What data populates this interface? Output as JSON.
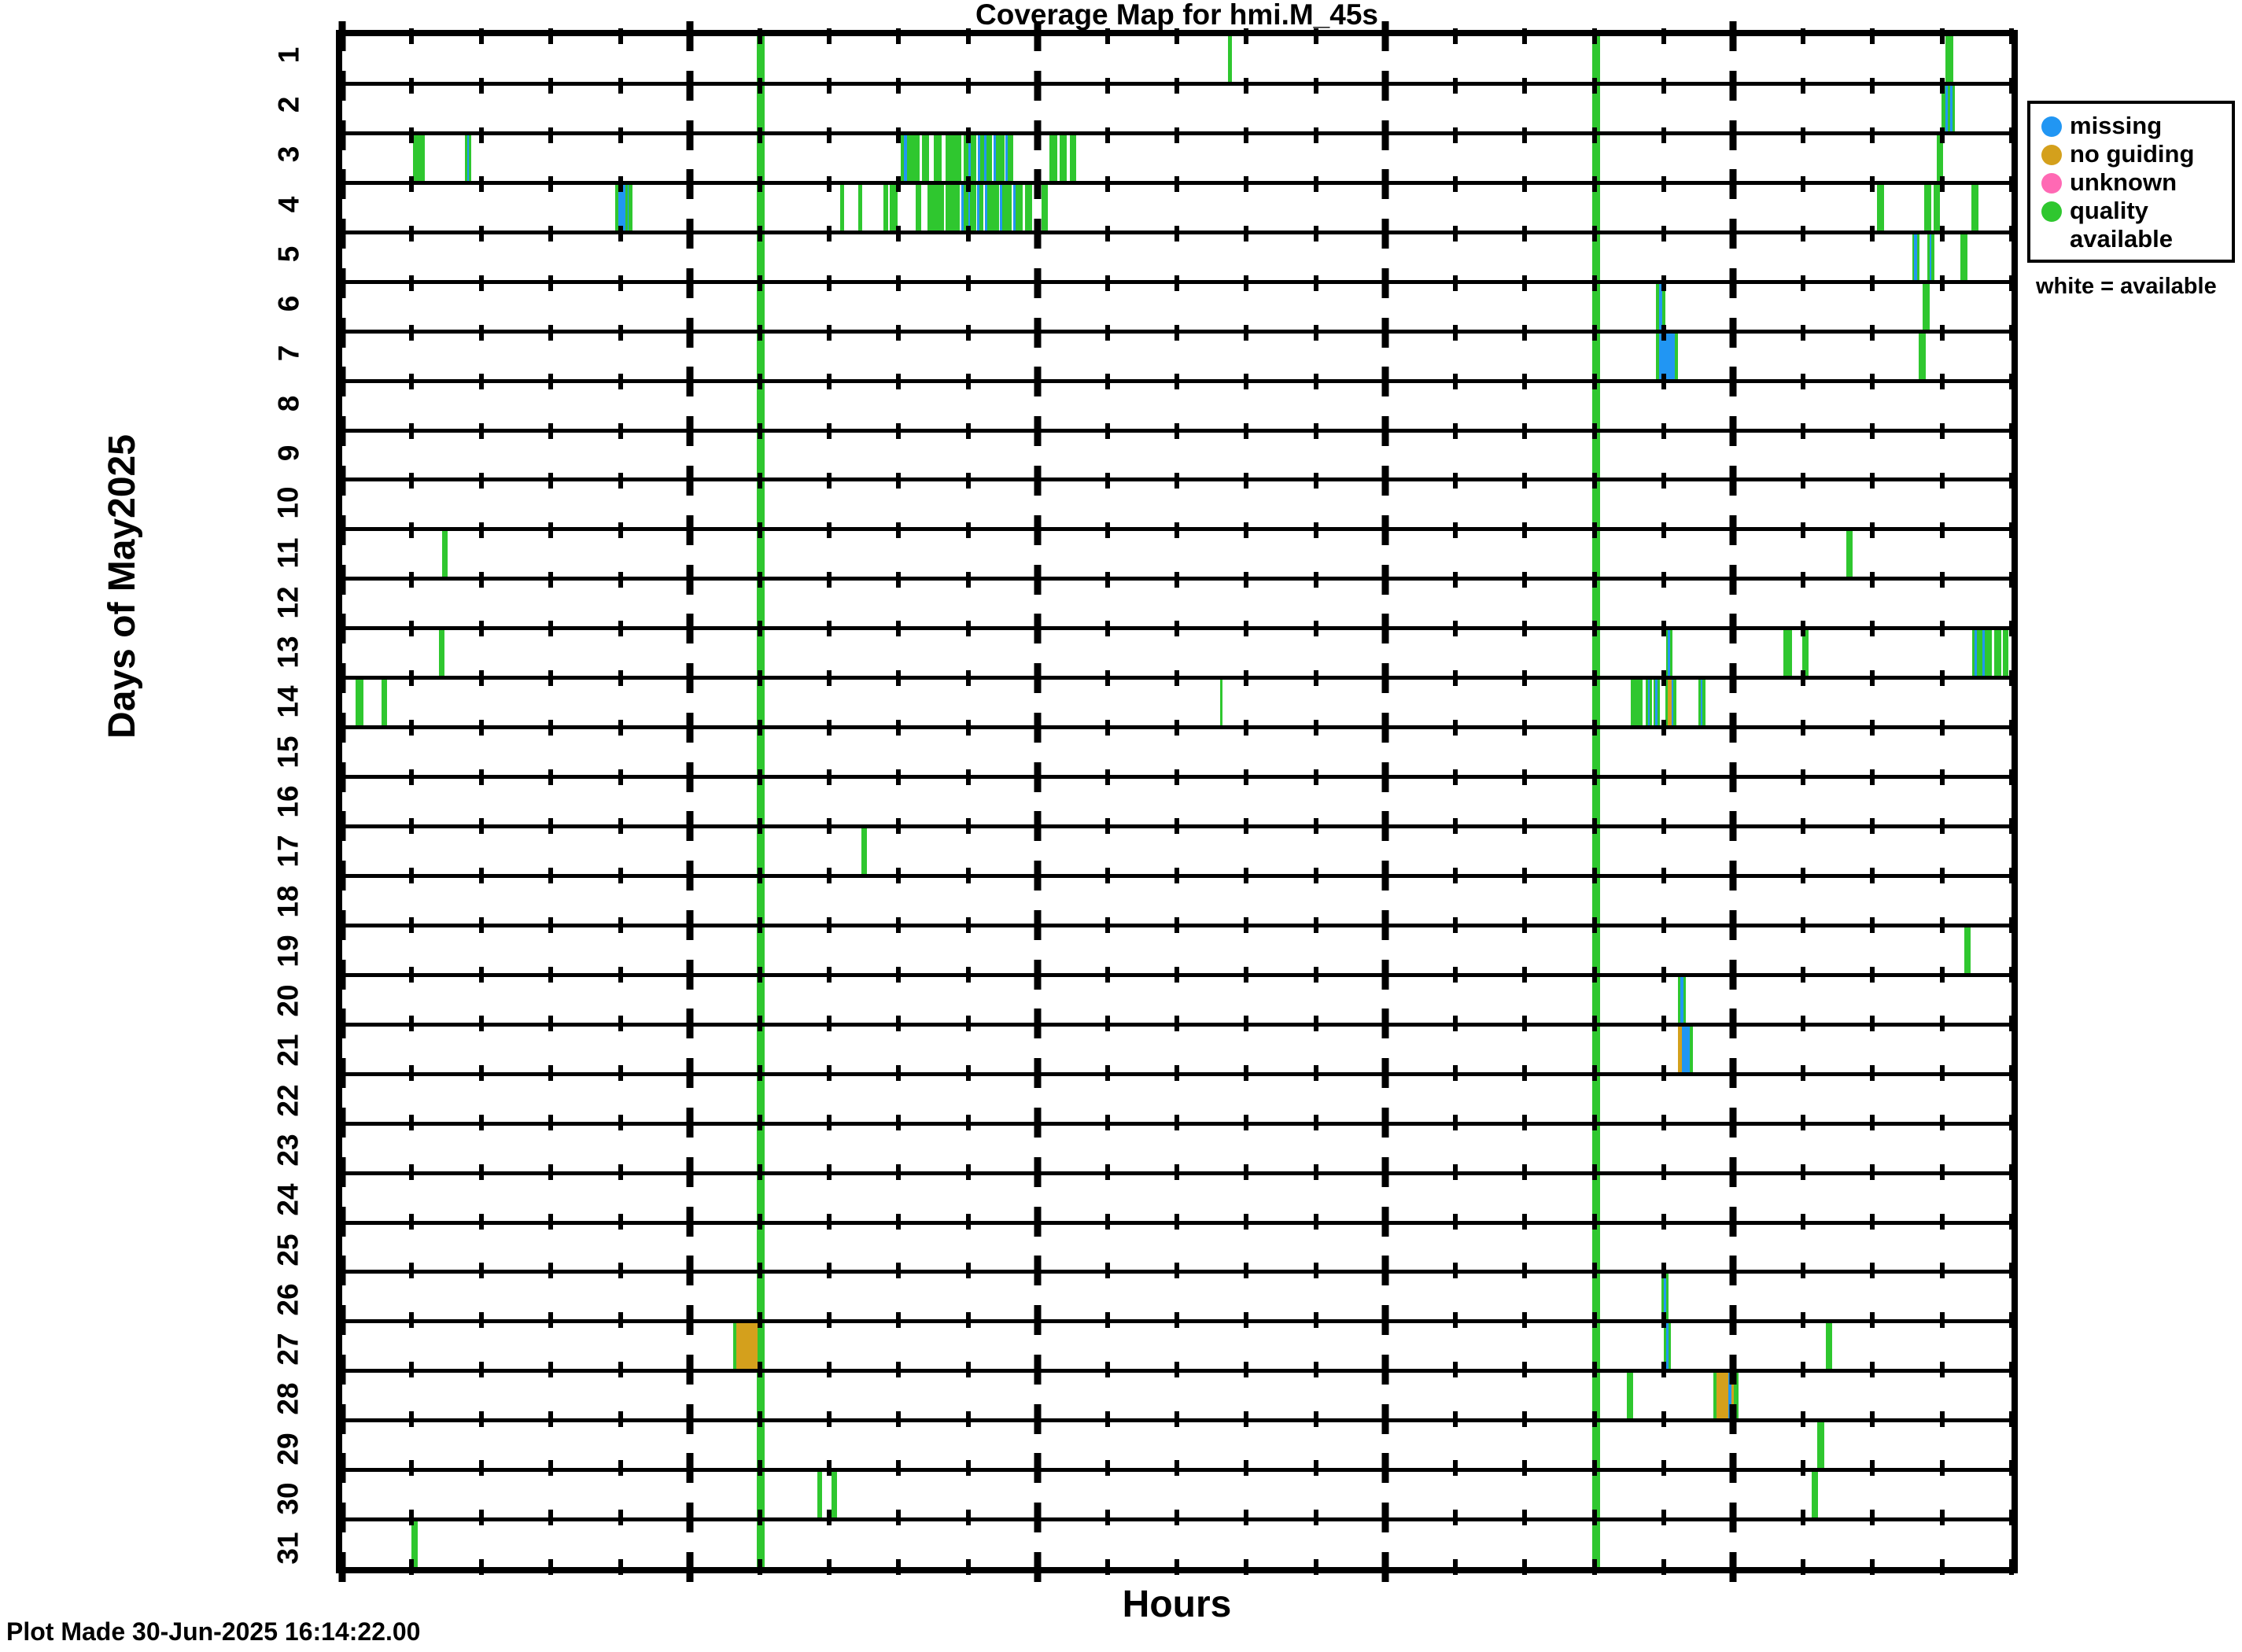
{
  "title": "Coverage Map for hmi.M_45s",
  "x_axis_label": "Hours",
  "y_axis_label": "Days of May2025",
  "footer": "Plot Made 30-Jun-2025 16:14:22.00",
  "legend": {
    "items": [
      {
        "label": "missing",
        "color": "#2196f3"
      },
      {
        "label": "no guiding",
        "color": "#d4a01c"
      },
      {
        "label": "unknown",
        "color": "#ff69b4"
      },
      {
        "label": "quality available",
        "color": "#2fc72f"
      }
    ],
    "note": "white = available"
  },
  "chart_data": {
    "type": "heatmap",
    "subtype": "coverage-map",
    "title": "Coverage Map for hmi.M_45s",
    "xlabel": "Hours",
    "ylabel": "Days of May2025",
    "x_range_hours": [
      0,
      24
    ],
    "minor_tick_hours": 1,
    "major_tick_hours": 5,
    "background_meaning": "white = available",
    "colors": {
      "g": "#2fc72f",
      "b": "#2196f3",
      "o": "#d4a01c",
      "p": "#ff69b4"
    },
    "color_meaning": {
      "g": "quality available",
      "b": "missing",
      "o": "no guiding",
      "p": "unknown"
    },
    "daily_marks": [
      [
        5.96,
        6.07,
        "g"
      ],
      [
        17.97,
        18.09,
        "g"
      ]
    ],
    "rows": [
      {
        "day": 1,
        "marks": [
          [
            12.74,
            12.79,
            "g"
          ],
          [
            23.05,
            23.16,
            "g"
          ]
        ]
      },
      {
        "day": 2,
        "marks": [
          [
            22.99,
            23.05,
            "g"
          ],
          [
            23.05,
            23.08,
            "b"
          ],
          [
            23.08,
            23.12,
            "g"
          ],
          [
            23.12,
            23.15,
            "b"
          ],
          [
            23.15,
            23.19,
            "g"
          ]
        ]
      },
      {
        "day": 3,
        "marks": [
          [
            1.02,
            1.19,
            "g"
          ],
          [
            1.77,
            1.8,
            "g"
          ],
          [
            1.8,
            1.82,
            "b"
          ],
          [
            1.82,
            1.86,
            "g"
          ],
          [
            8.03,
            8.08,
            "g"
          ],
          [
            8.08,
            8.12,
            "b"
          ],
          [
            8.12,
            8.3,
            "g"
          ],
          [
            8.34,
            8.44,
            "g"
          ],
          [
            8.5,
            8.62,
            "g"
          ],
          [
            8.68,
            8.9,
            "g"
          ],
          [
            8.94,
            9.0,
            "g"
          ],
          [
            9.0,
            9.04,
            "b"
          ],
          [
            9.04,
            9.12,
            "g"
          ],
          [
            9.14,
            9.17,
            "b"
          ],
          [
            9.17,
            9.23,
            "g"
          ],
          [
            9.23,
            9.26,
            "b"
          ],
          [
            9.26,
            9.34,
            "g"
          ],
          [
            9.36,
            9.4,
            "b"
          ],
          [
            9.4,
            9.52,
            "g"
          ],
          [
            9.54,
            9.57,
            "b"
          ],
          [
            9.57,
            9.65,
            "g"
          ],
          [
            10.17,
            10.28,
            "g"
          ],
          [
            10.32,
            10.42,
            "g"
          ],
          [
            10.46,
            10.55,
            "g"
          ],
          [
            22.92,
            23.02,
            "g"
          ]
        ]
      },
      {
        "day": 4,
        "marks": [
          [
            3.93,
            3.97,
            "g"
          ],
          [
            3.97,
            4.07,
            "b"
          ],
          [
            4.07,
            4.1,
            "g"
          ],
          [
            4.1,
            4.12,
            "b"
          ],
          [
            4.12,
            4.17,
            "g"
          ],
          [
            7.16,
            7.22,
            "g"
          ],
          [
            7.42,
            7.48,
            "g"
          ],
          [
            7.78,
            7.85,
            "g"
          ],
          [
            7.87,
            7.98,
            "g"
          ],
          [
            8.25,
            8.32,
            "g"
          ],
          [
            8.42,
            8.65,
            "g"
          ],
          [
            8.68,
            8.88,
            "g"
          ],
          [
            8.9,
            8.93,
            "b"
          ],
          [
            8.93,
            9.0,
            "g"
          ],
          [
            9.0,
            9.03,
            "b"
          ],
          [
            9.03,
            9.12,
            "g"
          ],
          [
            9.13,
            9.16,
            "b"
          ],
          [
            9.16,
            9.22,
            "g"
          ],
          [
            9.24,
            9.27,
            "b"
          ],
          [
            9.27,
            9.44,
            "g"
          ],
          [
            9.46,
            9.49,
            "b"
          ],
          [
            9.49,
            9.62,
            "g"
          ],
          [
            9.65,
            9.68,
            "b"
          ],
          [
            9.68,
            9.78,
            "g"
          ],
          [
            9.82,
            9.92,
            "g"
          ],
          [
            10.06,
            10.14,
            "g"
          ],
          [
            22.07,
            22.17,
            "g"
          ],
          [
            22.74,
            22.85,
            "g"
          ],
          [
            22.88,
            22.97,
            "g"
          ],
          [
            23.42,
            23.52,
            "g"
          ]
        ]
      },
      {
        "day": 5,
        "marks": [
          [
            22.57,
            22.6,
            "g"
          ],
          [
            22.6,
            22.64,
            "b"
          ],
          [
            22.64,
            22.68,
            "g"
          ],
          [
            22.79,
            22.82,
            "g"
          ],
          [
            22.82,
            22.85,
            "b"
          ],
          [
            22.85,
            22.89,
            "g"
          ],
          [
            23.27,
            23.37,
            "g"
          ]
        ]
      },
      {
        "day": 6,
        "marks": [
          [
            18.89,
            18.93,
            "g"
          ],
          [
            18.93,
            18.98,
            "b"
          ],
          [
            18.98,
            19.02,
            "g"
          ],
          [
            22.72,
            22.82,
            "g"
          ]
        ]
      },
      {
        "day": 7,
        "marks": [
          [
            18.89,
            18.93,
            "g"
          ],
          [
            18.93,
            19.16,
            "b"
          ],
          [
            19.16,
            19.21,
            "g"
          ],
          [
            22.66,
            22.77,
            "g"
          ]
        ]
      },
      {
        "day": 8,
        "marks": []
      },
      {
        "day": 9,
        "marks": []
      },
      {
        "day": 10,
        "marks": []
      },
      {
        "day": 11,
        "marks": [
          [
            1.44,
            1.52,
            "g"
          ],
          [
            21.62,
            21.71,
            "g"
          ]
        ]
      },
      {
        "day": 12,
        "marks": []
      },
      {
        "day": 13,
        "marks": [
          [
            1.39,
            1.47,
            "g"
          ],
          [
            19.03,
            19.06,
            "g"
          ],
          [
            19.06,
            19.09,
            "b"
          ],
          [
            19.09,
            19.12,
            "g"
          ],
          [
            20.72,
            20.84,
            "g"
          ],
          [
            20.99,
            21.08,
            "g"
          ],
          [
            23.44,
            23.47,
            "g"
          ],
          [
            23.47,
            23.5,
            "b"
          ],
          [
            23.5,
            23.58,
            "g"
          ],
          [
            23.58,
            23.61,
            "b"
          ],
          [
            23.61,
            23.72,
            "g"
          ],
          [
            23.75,
            23.85,
            "g"
          ],
          [
            23.87,
            23.95,
            "g"
          ]
        ]
      },
      {
        "day": 14,
        "marks": [
          [
            0.19,
            0.31,
            "g"
          ],
          [
            0.56,
            0.65,
            "g"
          ],
          [
            12.62,
            12.65,
            "g"
          ],
          [
            18.53,
            18.69,
            "g"
          ],
          [
            18.74,
            18.77,
            "g"
          ],
          [
            18.77,
            18.8,
            "b"
          ],
          [
            18.8,
            18.83,
            "g"
          ],
          [
            18.85,
            18.88,
            "g"
          ],
          [
            18.88,
            18.91,
            "b"
          ],
          [
            18.91,
            18.94,
            "g"
          ],
          [
            19.02,
            19.06,
            "g"
          ],
          [
            19.06,
            19.11,
            "o"
          ],
          [
            19.11,
            19.14,
            "b"
          ],
          [
            19.14,
            19.18,
            "g"
          ],
          [
            19.5,
            19.53,
            "g"
          ],
          [
            19.53,
            19.56,
            "b"
          ],
          [
            19.56,
            19.6,
            "g"
          ]
        ]
      },
      {
        "day": 15,
        "marks": []
      },
      {
        "day": 16,
        "marks": []
      },
      {
        "day": 17,
        "marks": [
          [
            7.46,
            7.54,
            "g"
          ]
        ]
      },
      {
        "day": 18,
        "marks": []
      },
      {
        "day": 19,
        "marks": [
          [
            23.32,
            23.41,
            "g"
          ]
        ]
      },
      {
        "day": 20,
        "marks": [
          [
            19.2,
            19.24,
            "g"
          ],
          [
            19.24,
            19.28,
            "b"
          ],
          [
            19.28,
            19.31,
            "g"
          ]
        ]
      },
      {
        "day": 21,
        "marks": [
          [
            19.21,
            19.26,
            "o"
          ],
          [
            19.26,
            19.37,
            "b"
          ],
          [
            19.37,
            19.42,
            "g"
          ]
        ]
      },
      {
        "day": 22,
        "marks": []
      },
      {
        "day": 23,
        "marks": []
      },
      {
        "day": 24,
        "marks": []
      },
      {
        "day": 25,
        "marks": []
      },
      {
        "day": 26,
        "marks": [
          [
            18.97,
            19.0,
            "g"
          ],
          [
            19.0,
            19.03,
            "b"
          ],
          [
            19.03,
            19.06,
            "g"
          ]
        ]
      },
      {
        "day": 27,
        "marks": [
          [
            5.62,
            5.67,
            "g"
          ],
          [
            5.67,
            5.97,
            "o"
          ],
          [
            19.0,
            19.04,
            "g"
          ],
          [
            19.04,
            19.07,
            "b"
          ],
          [
            19.07,
            19.1,
            "g"
          ],
          [
            21.33,
            21.42,
            "g"
          ]
        ]
      },
      {
        "day": 28,
        "marks": [
          [
            18.47,
            18.56,
            "g"
          ],
          [
            19.71,
            19.76,
            "g"
          ],
          [
            19.76,
            19.93,
            "o"
          ],
          [
            19.93,
            19.97,
            "b"
          ],
          [
            19.97,
            20.01,
            "o"
          ],
          [
            20.01,
            20.07,
            "g"
          ]
        ]
      },
      {
        "day": 29,
        "marks": [
          [
            21.21,
            21.31,
            "g"
          ]
        ]
      },
      {
        "day": 30,
        "marks": [
          [
            6.83,
            6.9,
            "g"
          ],
          [
            7.03,
            7.11,
            "g"
          ],
          [
            21.13,
            21.22,
            "g"
          ]
        ]
      },
      {
        "day": 31,
        "marks": [
          [
            1.0,
            1.09,
            "g"
          ]
        ]
      }
    ]
  }
}
